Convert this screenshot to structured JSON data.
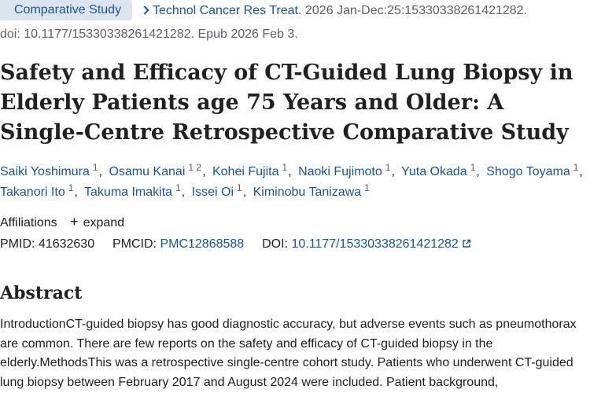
{
  "citation": {
    "publication_type": "Comparative Study",
    "journal": "Technol Cancer Res Treat.",
    "details": "2026 Jan-Dec:25:15330338261421282.",
    "doi_line": "doi: 10.1177/15330338261421282. Epub 2026 Feb 3."
  },
  "article": {
    "title": "Safety and Efficacy of CT-Guided Lung Biopsy in Elderly Patients age 75 Years and Older: A Single-Centre Retrospective Comparative Study"
  },
  "authors": [
    {
      "name": "Saiki Yoshimura",
      "aff": "1"
    },
    {
      "name": "Osamu Kanai",
      "aff": "1 2"
    },
    {
      "name": "Kohei Fujita",
      "aff": "1"
    },
    {
      "name": "Naoki Fujimoto",
      "aff": "1"
    },
    {
      "name": "Yuta Okada",
      "aff": "1"
    },
    {
      "name": "Shogo Toyama",
      "aff": "1"
    },
    {
      "name": "Takanori Ito",
      "aff": "1"
    },
    {
      "name": "Takuma Imakita",
      "aff": "1"
    },
    {
      "name": "Issei Oi",
      "aff": "1"
    },
    {
      "name": "Kiminobu Tanizawa",
      "aff": "1"
    }
  ],
  "affiliations": {
    "label": "Affiliations",
    "expand_label": "expand"
  },
  "identifiers": {
    "pmid_label": "PMID:",
    "pmid": "41632630",
    "pmcid_label": "PMCID:",
    "pmcid": "PMC12868588",
    "doi_label": "DOI:",
    "doi": "10.1177/15330338261421282"
  },
  "abstract": {
    "heading": "Abstract",
    "text": "IntroductionCT-guided biopsy has good diagnostic accuracy, but adverse events such as pneumothorax are common. There are few reports on the safety and efficacy of CT-guided biopsy in the elderly.MethodsThis was a retrospective single-centre cohort study. Patients who underwent CT-guided lung biopsy between February 2017 and August 2024 were included. Patient background,"
  },
  "colors": {
    "link": "#20558a",
    "badge_bg": "#dce4ef",
    "muted": "#5b616b"
  },
  "icons": {
    "journal_chevron": "chevron-right-icon",
    "expand": "plus-icon",
    "doi_external": "external-link-icon"
  }
}
